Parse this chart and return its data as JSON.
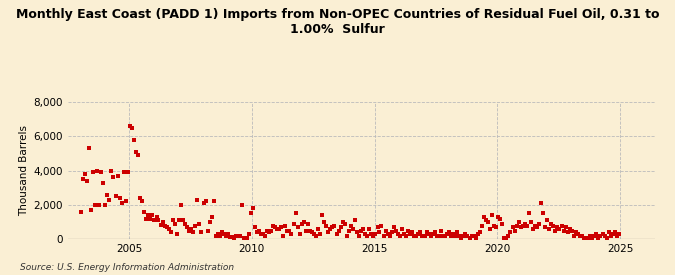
{
  "title": "Monthly East Coast (PADD 1) Imports from Non-OPEC Countries of Residual Fuel Oil, 0.31 to\n1.00%  Sulfur",
  "ylabel": "Thousand Barrels",
  "source_text": "Source: U.S. Energy Information Administration",
  "background_color": "#faefd4",
  "dot_color": "#cc0000",
  "dot_size": 5,
  "ylim": [
    0,
    8000
  ],
  "yticks": [
    0,
    2000,
    4000,
    6000,
    8000
  ],
  "ytick_labels": [
    "0",
    "2,000",
    "4,000",
    "6,000",
    "8,000"
  ],
  "xlim_start": [
    2002,
    7,
    1
  ],
  "xlim_end": [
    2026,
    6,
    1
  ],
  "data": [
    [
      2003,
      1,
      1600
    ],
    [
      2003,
      2,
      3500
    ],
    [
      2003,
      3,
      3800
    ],
    [
      2003,
      4,
      3400
    ],
    [
      2003,
      5,
      5300
    ],
    [
      2003,
      6,
      1700
    ],
    [
      2003,
      7,
      3900
    ],
    [
      2003,
      8,
      2000
    ],
    [
      2003,
      9,
      4000
    ],
    [
      2003,
      10,
      2000
    ],
    [
      2003,
      11,
      3900
    ],
    [
      2003,
      12,
      3300
    ],
    [
      2004,
      1,
      2000
    ],
    [
      2004,
      2,
      2600
    ],
    [
      2004,
      3,
      2300
    ],
    [
      2004,
      4,
      4000
    ],
    [
      2004,
      5,
      3600
    ],
    [
      2004,
      6,
      2500
    ],
    [
      2004,
      7,
      3700
    ],
    [
      2004,
      8,
      2400
    ],
    [
      2004,
      9,
      2100
    ],
    [
      2004,
      10,
      3900
    ],
    [
      2004,
      11,
      2200
    ],
    [
      2004,
      12,
      3900
    ],
    [
      2005,
      1,
      6600
    ],
    [
      2005,
      2,
      6500
    ],
    [
      2005,
      3,
      5800
    ],
    [
      2005,
      4,
      5100
    ],
    [
      2005,
      5,
      4900
    ],
    [
      2005,
      6,
      2400
    ],
    [
      2005,
      7,
      2200
    ],
    [
      2005,
      8,
      1600
    ],
    [
      2005,
      9,
      1200
    ],
    [
      2005,
      10,
      1400
    ],
    [
      2005,
      11,
      1200
    ],
    [
      2005,
      12,
      1400
    ],
    [
      2006,
      1,
      1100
    ],
    [
      2006,
      2,
      1300
    ],
    [
      2006,
      3,
      1100
    ],
    [
      2006,
      4,
      850
    ],
    [
      2006,
      5,
      1000
    ],
    [
      2006,
      6,
      800
    ],
    [
      2006,
      7,
      700
    ],
    [
      2006,
      8,
      600
    ],
    [
      2006,
      9,
      400
    ],
    [
      2006,
      10,
      1100
    ],
    [
      2006,
      11,
      900
    ],
    [
      2006,
      12,
      300
    ],
    [
      2007,
      1,
      1100
    ],
    [
      2007,
      2,
      2000
    ],
    [
      2007,
      3,
      1100
    ],
    [
      2007,
      4,
      900
    ],
    [
      2007,
      5,
      700
    ],
    [
      2007,
      6,
      500
    ],
    [
      2007,
      7,
      600
    ],
    [
      2007,
      8,
      400
    ],
    [
      2007,
      9,
      800
    ],
    [
      2007,
      10,
      2300
    ],
    [
      2007,
      11,
      900
    ],
    [
      2007,
      12,
      400
    ],
    [
      2008,
      1,
      2100
    ],
    [
      2008,
      2,
      2200
    ],
    [
      2008,
      3,
      500
    ],
    [
      2008,
      4,
      1000
    ],
    [
      2008,
      5,
      1300
    ],
    [
      2008,
      6,
      2200
    ],
    [
      2008,
      7,
      200
    ],
    [
      2008,
      8,
      300
    ],
    [
      2008,
      9,
      200
    ],
    [
      2008,
      10,
      400
    ],
    [
      2008,
      11,
      300
    ],
    [
      2008,
      12,
      200
    ],
    [
      2009,
      1,
      300
    ],
    [
      2009,
      2,
      150
    ],
    [
      2009,
      3,
      150
    ],
    [
      2009,
      4,
      100
    ],
    [
      2009,
      5,
      200
    ],
    [
      2009,
      6,
      200
    ],
    [
      2009,
      7,
      200
    ],
    [
      2009,
      8,
      2000
    ],
    [
      2009,
      9,
      100
    ],
    [
      2009,
      10,
      100
    ],
    [
      2009,
      11,
      300
    ],
    [
      2009,
      12,
      1500
    ],
    [
      2010,
      1,
      1800
    ],
    [
      2010,
      2,
      700
    ],
    [
      2010,
      3,
      400
    ],
    [
      2010,
      4,
      500
    ],
    [
      2010,
      5,
      300
    ],
    [
      2010,
      6,
      300
    ],
    [
      2010,
      7,
      200
    ],
    [
      2010,
      8,
      500
    ],
    [
      2010,
      9,
      400
    ],
    [
      2010,
      10,
      500
    ],
    [
      2010,
      11,
      800
    ],
    [
      2010,
      12,
      700
    ],
    [
      2011,
      1,
      600
    ],
    [
      2011,
      2,
      600
    ],
    [
      2011,
      3,
      700
    ],
    [
      2011,
      4,
      200
    ],
    [
      2011,
      5,
      800
    ],
    [
      2011,
      6,
      500
    ],
    [
      2011,
      7,
      500
    ],
    [
      2011,
      8,
      300
    ],
    [
      2011,
      9,
      900
    ],
    [
      2011,
      10,
      1500
    ],
    [
      2011,
      11,
      700
    ],
    [
      2011,
      12,
      300
    ],
    [
      2012,
      1,
      900
    ],
    [
      2012,
      2,
      1000
    ],
    [
      2012,
      3,
      500
    ],
    [
      2012,
      4,
      900
    ],
    [
      2012,
      5,
      500
    ],
    [
      2012,
      6,
      400
    ],
    [
      2012,
      7,
      300
    ],
    [
      2012,
      8,
      200
    ],
    [
      2012,
      9,
      600
    ],
    [
      2012,
      10,
      300
    ],
    [
      2012,
      11,
      1400
    ],
    [
      2012,
      12,
      1000
    ],
    [
      2013,
      1,
      800
    ],
    [
      2013,
      2,
      400
    ],
    [
      2013,
      3,
      600
    ],
    [
      2013,
      4,
      700
    ],
    [
      2013,
      5,
      800
    ],
    [
      2013,
      6,
      300
    ],
    [
      2013,
      7,
      500
    ],
    [
      2013,
      8,
      700
    ],
    [
      2013,
      9,
      1000
    ],
    [
      2013,
      10,
      900
    ],
    [
      2013,
      11,
      200
    ],
    [
      2013,
      12,
      500
    ],
    [
      2014,
      1,
      800
    ],
    [
      2014,
      2,
      600
    ],
    [
      2014,
      3,
      1100
    ],
    [
      2014,
      4,
      400
    ],
    [
      2014,
      5,
      200
    ],
    [
      2014,
      6,
      500
    ],
    [
      2014,
      7,
      600
    ],
    [
      2014,
      8,
      300
    ],
    [
      2014,
      9,
      200
    ],
    [
      2014,
      10,
      600
    ],
    [
      2014,
      11,
      300
    ],
    [
      2014,
      12,
      200
    ],
    [
      2015,
      1,
      300
    ],
    [
      2015,
      2,
      700
    ],
    [
      2015,
      3,
      400
    ],
    [
      2015,
      4,
      800
    ],
    [
      2015,
      5,
      200
    ],
    [
      2015,
      6,
      500
    ],
    [
      2015,
      7,
      300
    ],
    [
      2015,
      8,
      200
    ],
    [
      2015,
      9,
      400
    ],
    [
      2015,
      10,
      700
    ],
    [
      2015,
      11,
      500
    ],
    [
      2015,
      12,
      300
    ],
    [
      2016,
      1,
      200
    ],
    [
      2016,
      2,
      600
    ],
    [
      2016,
      3,
      300
    ],
    [
      2016,
      4,
      200
    ],
    [
      2016,
      5,
      500
    ],
    [
      2016,
      6,
      300
    ],
    [
      2016,
      7,
      400
    ],
    [
      2016,
      8,
      200
    ],
    [
      2016,
      9,
      200
    ],
    [
      2016,
      10,
      300
    ],
    [
      2016,
      11,
      400
    ],
    [
      2016,
      12,
      200
    ],
    [
      2017,
      1,
      200
    ],
    [
      2017,
      2,
      400
    ],
    [
      2017,
      3,
      300
    ],
    [
      2017,
      4,
      200
    ],
    [
      2017,
      5,
      300
    ],
    [
      2017,
      6,
      400
    ],
    [
      2017,
      7,
      200
    ],
    [
      2017,
      8,
      200
    ],
    [
      2017,
      9,
      500
    ],
    [
      2017,
      10,
      200
    ],
    [
      2017,
      11,
      200
    ],
    [
      2017,
      12,
      300
    ],
    [
      2018,
      1,
      400
    ],
    [
      2018,
      2,
      200
    ],
    [
      2018,
      3,
      300
    ],
    [
      2018,
      4,
      200
    ],
    [
      2018,
      5,
      400
    ],
    [
      2018,
      6,
      200
    ],
    [
      2018,
      7,
      100
    ],
    [
      2018,
      8,
      200
    ],
    [
      2018,
      9,
      300
    ],
    [
      2018,
      10,
      200
    ],
    [
      2018,
      11,
      100
    ],
    [
      2018,
      12,
      200
    ],
    [
      2019,
      1,
      200
    ],
    [
      2019,
      2,
      100
    ],
    [
      2019,
      3,
      300
    ],
    [
      2019,
      4,
      400
    ],
    [
      2019,
      5,
      800
    ],
    [
      2019,
      6,
      1300
    ],
    [
      2019,
      7,
      1100
    ],
    [
      2019,
      8,
      1000
    ],
    [
      2019,
      9,
      600
    ],
    [
      2019,
      10,
      1400
    ],
    [
      2019,
      11,
      800
    ],
    [
      2019,
      12,
      700
    ],
    [
      2020,
      1,
      1300
    ],
    [
      2020,
      2,
      1200
    ],
    [
      2020,
      3,
      900
    ],
    [
      2020,
      4,
      100
    ],
    [
      2020,
      5,
      100
    ],
    [
      2020,
      6,
      200
    ],
    [
      2020,
      7,
      400
    ],
    [
      2020,
      8,
      700
    ],
    [
      2020,
      9,
      500
    ],
    [
      2020,
      10,
      800
    ],
    [
      2020,
      11,
      1000
    ],
    [
      2020,
      12,
      700
    ],
    [
      2021,
      1,
      800
    ],
    [
      2021,
      2,
      900
    ],
    [
      2021,
      3,
      800
    ],
    [
      2021,
      4,
      1500
    ],
    [
      2021,
      5,
      1000
    ],
    [
      2021,
      6,
      600
    ],
    [
      2021,
      7,
      800
    ],
    [
      2021,
      8,
      700
    ],
    [
      2021,
      9,
      900
    ],
    [
      2021,
      10,
      2100
    ],
    [
      2021,
      11,
      1500
    ],
    [
      2021,
      12,
      700
    ],
    [
      2022,
      1,
      1100
    ],
    [
      2022,
      2,
      600
    ],
    [
      2022,
      3,
      900
    ],
    [
      2022,
      4,
      800
    ],
    [
      2022,
      5,
      500
    ],
    [
      2022,
      6,
      700
    ],
    [
      2022,
      7,
      600
    ],
    [
      2022,
      8,
      800
    ],
    [
      2022,
      9,
      500
    ],
    [
      2022,
      10,
      700
    ],
    [
      2022,
      11,
      400
    ],
    [
      2022,
      12,
      600
    ],
    [
      2023,
      1,
      500
    ],
    [
      2023,
      2,
      200
    ],
    [
      2023,
      3,
      400
    ],
    [
      2023,
      4,
      300
    ],
    [
      2023,
      5,
      200
    ],
    [
      2023,
      6,
      200
    ],
    [
      2023,
      7,
      100
    ],
    [
      2023,
      8,
      100
    ],
    [
      2023,
      9,
      100
    ],
    [
      2023,
      10,
      200
    ],
    [
      2023,
      11,
      100
    ],
    [
      2023,
      12,
      200
    ],
    [
      2024,
      1,
      300
    ],
    [
      2024,
      2,
      100
    ],
    [
      2024,
      3,
      200
    ],
    [
      2024,
      4,
      300
    ],
    [
      2024,
      5,
      200
    ],
    [
      2024,
      6,
      100
    ],
    [
      2024,
      7,
      400
    ],
    [
      2024,
      8,
      200
    ],
    [
      2024,
      9,
      300
    ],
    [
      2024,
      10,
      400
    ],
    [
      2024,
      11,
      200
    ],
    [
      2024,
      12,
      300
    ]
  ]
}
